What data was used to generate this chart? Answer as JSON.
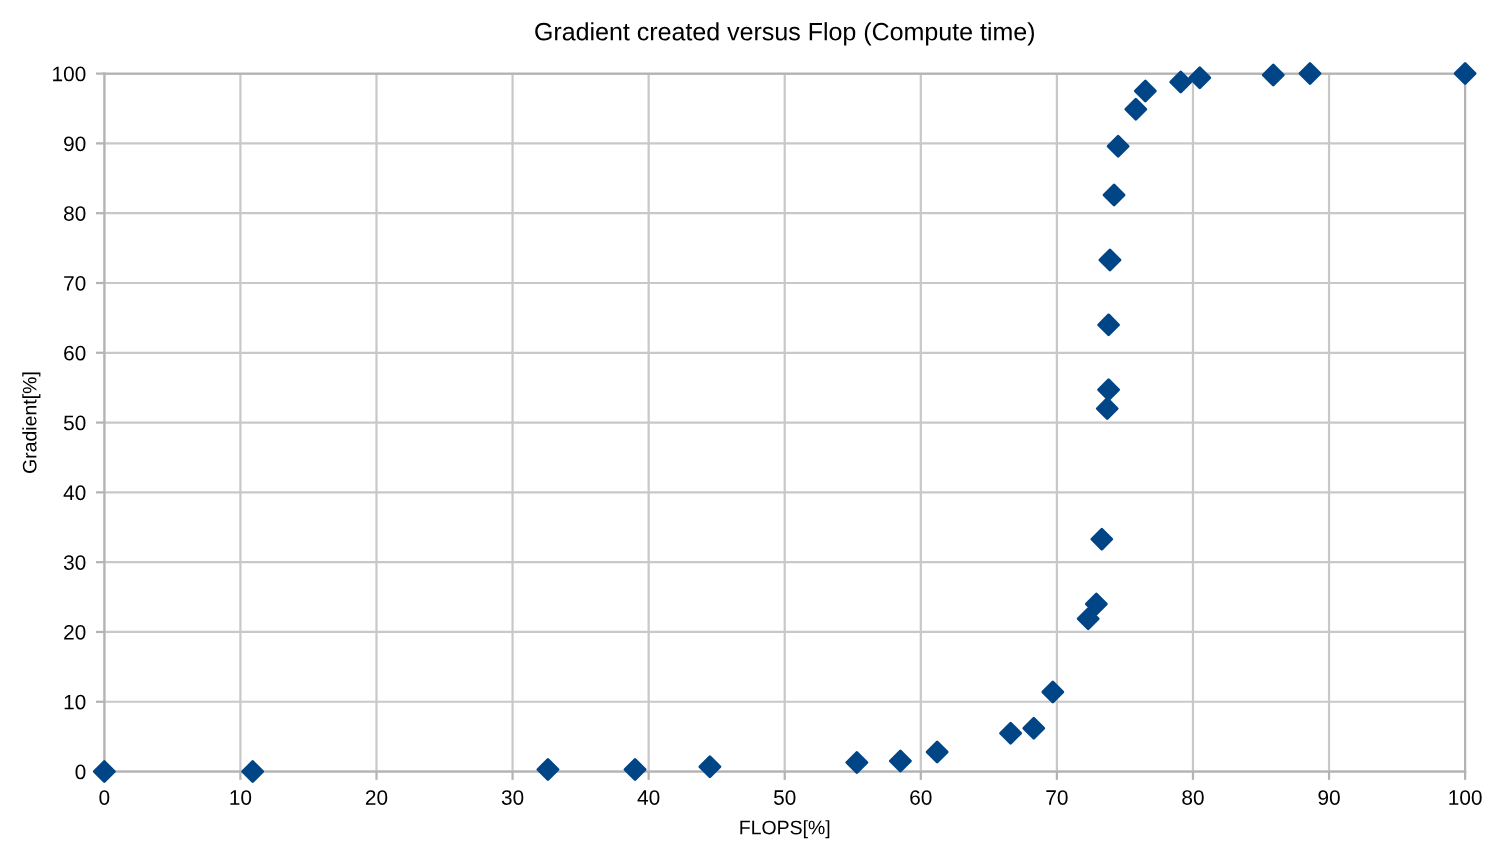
{
  "chart_data": {
    "type": "scatter",
    "title": "Gradient created versus Flop (Compute time)",
    "xlabel": "FLOPS[%]",
    "ylabel": "Gradient[%]",
    "series": [
      {
        "color": "#004586",
        "x": [
          0,
          10.9,
          32.6,
          39,
          44.5,
          55.3,
          58.5,
          61.2,
          66.6,
          68.3,
          69.7,
          72.3,
          72.9,
          73.3,
          73.7,
          73.8,
          73.8,
          73.9,
          74.2,
          74.5,
          75.8,
          76.5,
          79.1,
          80.5,
          85.9,
          88.6,
          100
        ],
        "values": [
          0,
          0,
          0.3,
          0.3,
          0.7,
          1.3,
          1.5,
          2.8,
          5.5,
          6.2,
          11.4,
          21.9,
          24,
          33.3,
          52,
          54.7,
          64,
          73.3,
          82.6,
          89.6,
          94.9,
          97.5,
          98.8,
          99.4,
          99.8,
          100,
          100
        ]
      }
    ],
    "xlim": [
      0,
      100
    ],
    "xticks": [
      0,
      10,
      20,
      30,
      40,
      50,
      60,
      70,
      80,
      90,
      100
    ],
    "ylim": [
      0,
      100
    ],
    "yticks": [
      0,
      10,
      20,
      30,
      40,
      50,
      60,
      70,
      80,
      90,
      100
    ],
    "grid": true,
    "marker": "diamond"
  }
}
